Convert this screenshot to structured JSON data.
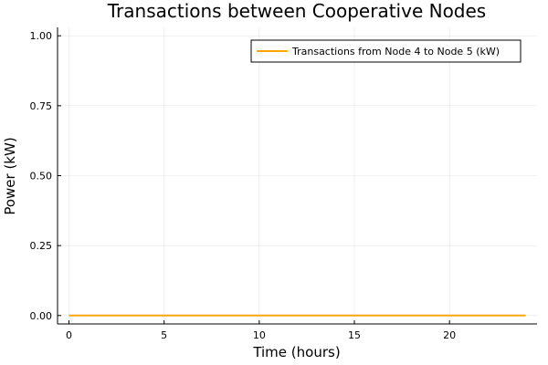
{
  "chart_data": {
    "type": "line",
    "title": "Transactions between Cooperative Nodes",
    "xlabel": "Time (hours)",
    "ylabel": "Power (kW)",
    "xlim": [
      -0.6,
      24.6
    ],
    "ylim": [
      -0.03,
      1.03
    ],
    "xticks": [
      0,
      5,
      10,
      15,
      20
    ],
    "xtick_labels": [
      "0",
      "5",
      "10",
      "15",
      "20"
    ],
    "yticks": [
      0,
      0.25,
      0.5,
      0.75,
      1.0
    ],
    "ytick_labels": [
      "0.00",
      "0.25",
      "0.50",
      "0.75",
      "1.00"
    ],
    "grid": true,
    "legend_position": "top-right",
    "series": [
      {
        "name": "Transactions from Node 4 to Node 5 (kW)",
        "color": "#FFA500",
        "x": [
          0,
          1,
          2,
          3,
          4,
          5,
          6,
          7,
          8,
          9,
          10,
          11,
          12,
          13,
          14,
          15,
          16,
          17,
          18,
          19,
          20,
          21,
          22,
          23,
          24
        ],
        "y": [
          0,
          0,
          0,
          0,
          0,
          0,
          0,
          0,
          0,
          0,
          0,
          0,
          0,
          0,
          0,
          0,
          0,
          0,
          0,
          0,
          0,
          0,
          0,
          0,
          0
        ]
      }
    ]
  }
}
